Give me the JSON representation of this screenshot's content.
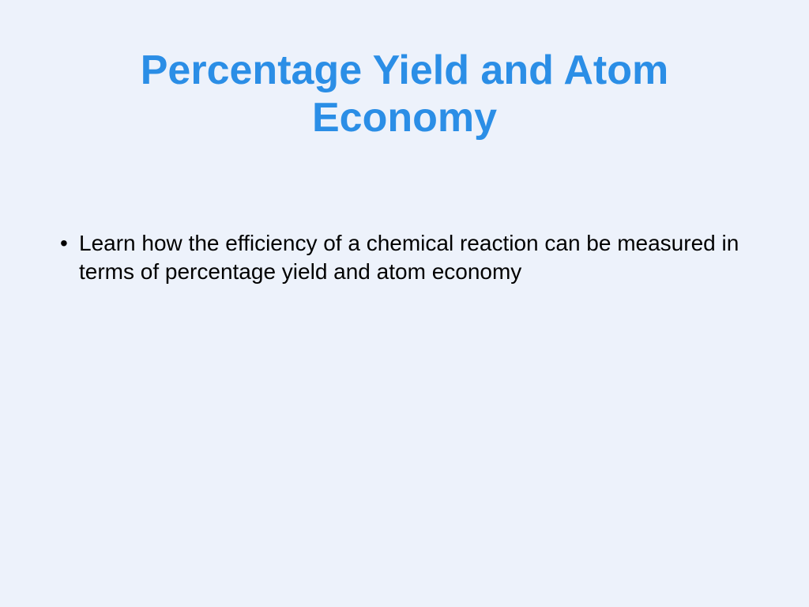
{
  "slide": {
    "title": "Percentage Yield and Atom Economy",
    "title_color": "#2b8ee6",
    "title_fontsize": 52,
    "title_fontweight": "bold",
    "background_color": "#edf2fb",
    "bullets": [
      {
        "text": "Learn how the efficiency of a chemical reaction can be measured in terms of percentage yield and atom economy"
      }
    ],
    "bullet_color": "#000000",
    "bullet_fontsize": 28
  }
}
